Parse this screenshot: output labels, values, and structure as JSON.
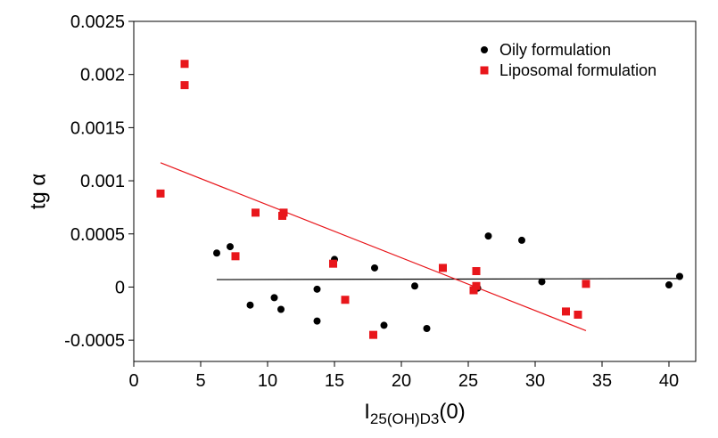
{
  "chart_data": {
    "type": "scatter",
    "title": "",
    "xlabel_main": "I",
    "xlabel_sub": "25(OH)D3",
    "xlabel_tail": "(0)",
    "ylabel": "tg α",
    "xlim": [
      0,
      42
    ],
    "ylim": [
      -0.0007,
      0.0025
    ],
    "x_ticks": [
      0,
      5,
      10,
      15,
      20,
      25,
      30,
      35,
      40
    ],
    "x_tick_labels": [
      "0",
      "5",
      "10",
      "15",
      "20",
      "25",
      "30",
      "35",
      "40"
    ],
    "y_ticks": [
      -0.0005,
      0,
      0.0005,
      0.001,
      0.0015,
      0.002,
      0.0025
    ],
    "y_tick_labels": [
      "-0.0005",
      "0",
      "0.0005",
      "0.001",
      "0.0015",
      "0.002",
      "0.0025"
    ],
    "grid": false,
    "legend_position": "top-right",
    "series": [
      {
        "name": "Oily formulation",
        "color": "#000000",
        "marker": "circle",
        "points": [
          [
            6.2,
            0.00032
          ],
          [
            7.2,
            0.00038
          ],
          [
            8.7,
            -0.00017
          ],
          [
            10.5,
            -0.0001
          ],
          [
            11.0,
            -0.00021
          ],
          [
            13.7,
            -2e-05
          ],
          [
            13.7,
            -0.00032
          ],
          [
            15.0,
            0.00026
          ],
          [
            18.0,
            0.00018
          ],
          [
            18.7,
            -0.00036
          ],
          [
            21.0,
            1e-05
          ],
          [
            21.9,
            -0.00039
          ],
          [
            25.7,
            -1e-05
          ],
          [
            26.5,
            0.00048
          ],
          [
            29.0,
            0.00044
          ],
          [
            30.5,
            5e-05
          ],
          [
            40.0,
            2e-05
          ],
          [
            40.8,
            0.0001
          ]
        ],
        "fit": {
          "x1": 6.2,
          "y1": 7e-05,
          "x2": 40.8,
          "y2": 8e-05,
          "color": "#000000"
        }
      },
      {
        "name": "Liposomal formulation",
        "color": "#e8161b",
        "marker": "square",
        "points": [
          [
            2.0,
            0.00088
          ],
          [
            3.8,
            0.0021
          ],
          [
            3.8,
            0.0019
          ],
          [
            7.6,
            0.00029
          ],
          [
            9.1,
            0.0007
          ],
          [
            11.1,
            0.00067
          ],
          [
            11.2,
            0.0007
          ],
          [
            14.9,
            0.00022
          ],
          [
            15.8,
            -0.00012
          ],
          [
            17.9,
            -0.00045
          ],
          [
            23.1,
            0.00018
          ],
          [
            25.4,
            -3e-05
          ],
          [
            25.6,
            0.00015
          ],
          [
            25.6,
            1e-05
          ],
          [
            32.3,
            -0.00023
          ],
          [
            33.2,
            -0.00026
          ],
          [
            33.8,
            3e-05
          ]
        ],
        "fit": {
          "x1": 2.0,
          "y1": 0.00117,
          "x2": 33.8,
          "y2": -0.00041,
          "color": "#e8161b"
        }
      }
    ]
  }
}
